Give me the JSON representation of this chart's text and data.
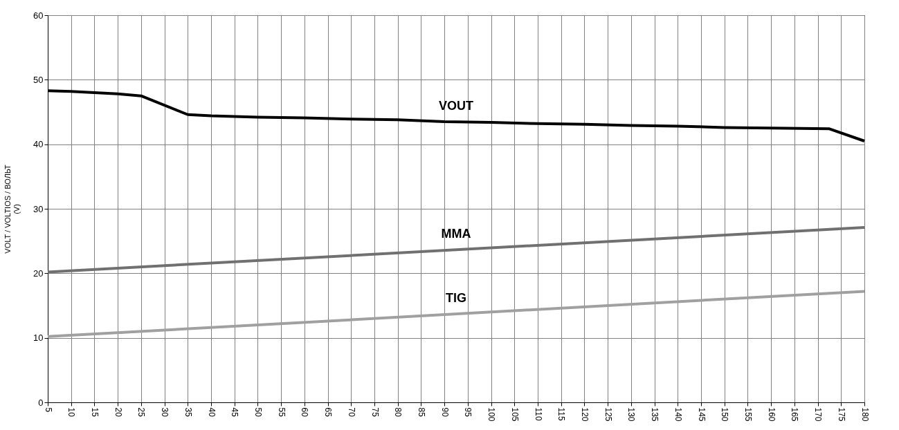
{
  "chart_data": {
    "type": "line",
    "ylabel": "VOLT / VOLTIOS / ВОЛЬТ\n(V)",
    "xlim": [
      5,
      180
    ],
    "xticks": [
      5,
      10,
      15,
      20,
      25,
      30,
      35,
      40,
      45,
      50,
      55,
      60,
      65,
      70,
      75,
      80,
      85,
      90,
      95,
      100,
      105,
      110,
      115,
      120,
      125,
      130,
      135,
      140,
      145,
      150,
      155,
      160,
      165,
      170,
      175,
      180
    ],
    "ylim": [
      0,
      60
    ],
    "yticks": [
      0,
      10,
      20,
      30,
      40,
      50,
      60
    ],
    "grid": true,
    "legend": false,
    "marker": "none",
    "line_style": "solid",
    "series": [
      {
        "name": "VOUT",
        "color": "#000000",
        "x": [
          5,
          10,
          15,
          20,
          25,
          35,
          40,
          50,
          60,
          70,
          80,
          90,
          100,
          110,
          120,
          130,
          140,
          150,
          160,
          172.5,
          180
        ],
        "values": [
          48.3,
          48.2,
          48.0,
          47.8,
          47.5,
          44.6,
          44.4,
          44.2,
          44.1,
          43.9,
          43.8,
          43.5,
          43.4,
          43.2,
          43.1,
          42.9,
          42.8,
          42.6,
          42.5,
          42.4,
          40.5
        ]
      },
      {
        "name": "MMA",
        "color": "#707070",
        "x": [
          5,
          180
        ],
        "values": [
          20.2,
          27.1
        ]
      },
      {
        "name": "TIG",
        "color": "#a0a0a0",
        "x": [
          5,
          180
        ],
        "values": [
          10.2,
          17.2
        ]
      }
    ]
  }
}
